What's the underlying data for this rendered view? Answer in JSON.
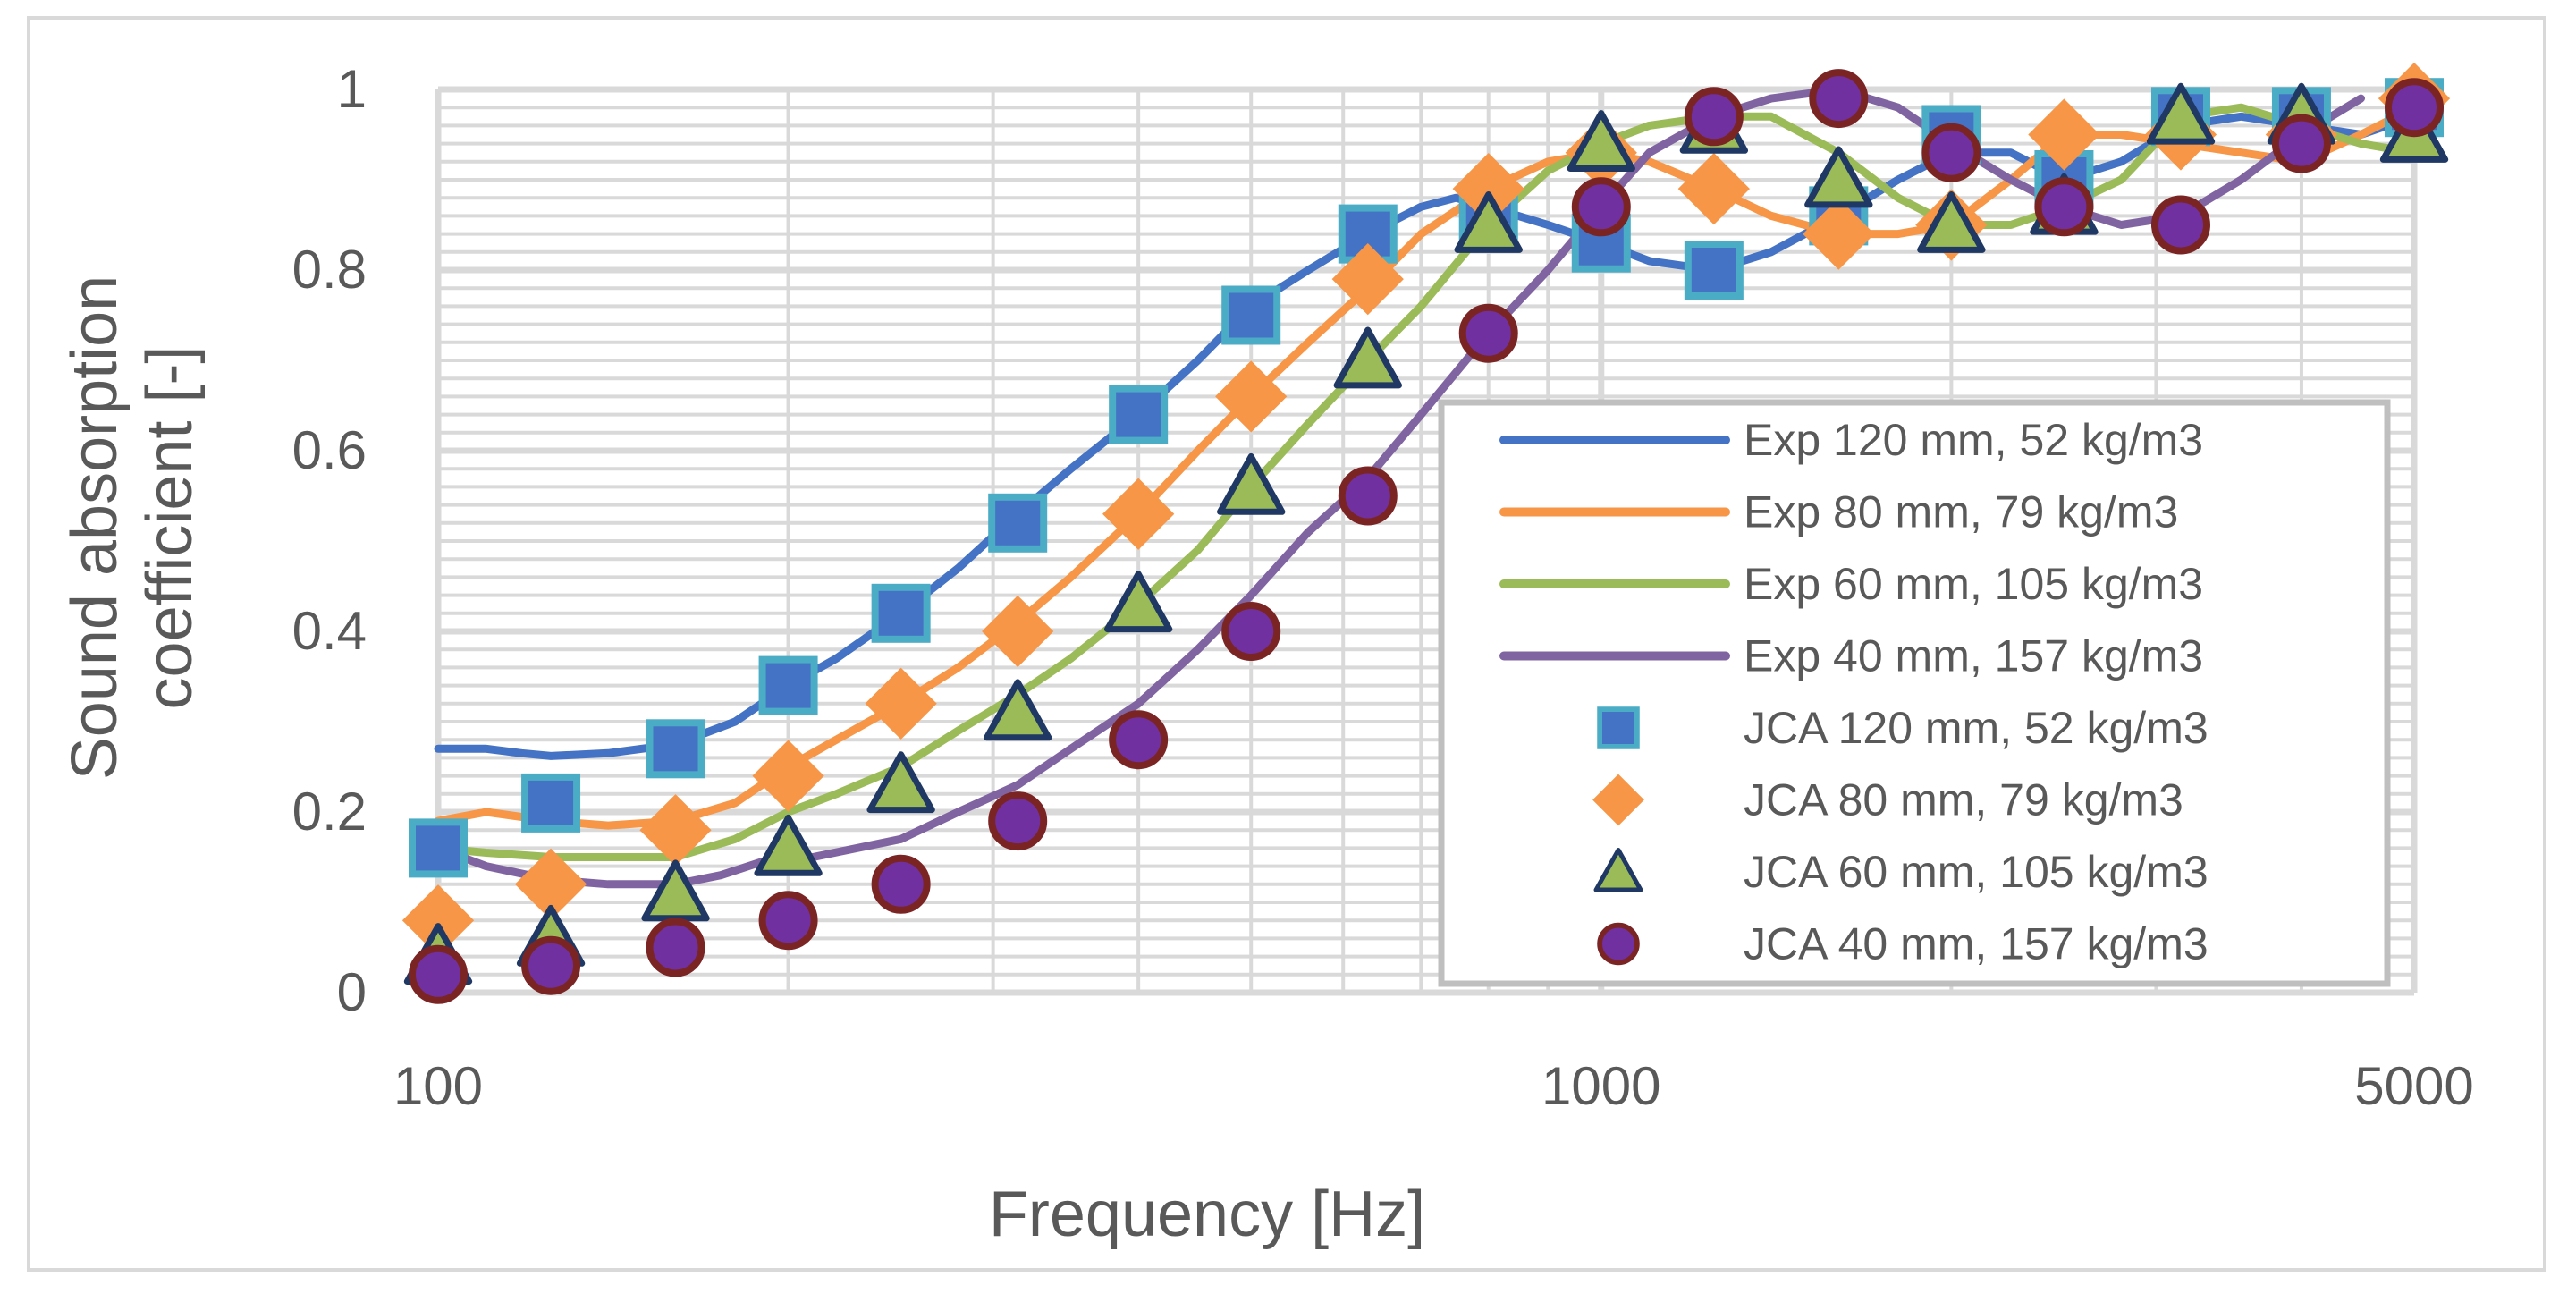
{
  "chart_data": {
    "type": "line",
    "xscale": "log",
    "xlim": [
      100,
      5000
    ],
    "ylim": [
      0,
      1
    ],
    "xlabel": "Frequency [Hz]",
    "ylabel_line1": "Sound absorption",
    "ylabel_line2": "coefficient [-]",
    "xticks": [
      {
        "value": 100,
        "label": "100"
      },
      {
        "value": 1000,
        "label": "1000"
      },
      {
        "value": 5000,
        "label": "5000"
      }
    ],
    "yticks": [
      {
        "value": 0,
        "label": "0"
      },
      {
        "value": 0.2,
        "label": "0.2"
      },
      {
        "value": 0.4,
        "label": "0.4"
      },
      {
        "value": 0.6,
        "label": "0.6"
      },
      {
        "value": 0.8,
        "label": "0.8"
      },
      {
        "value": 1,
        "label": "1"
      }
    ],
    "grid": true,
    "legend_position": "right-lower inside",
    "colors": {
      "blue": "#4472c4",
      "orange": "#f79646",
      "green": "#9bbb59",
      "purple": "#8064a2",
      "teal_edge": "#4bacc6",
      "dark_blue_edge": "#1f3864",
      "dark_red_edge": "#7b2424",
      "grid": "#d9d9d9"
    },
    "lines": [
      {
        "name": "Exp 120 mm, 52 kg/m3",
        "color": "#4472c4",
        "x": [
          100,
          110,
          118,
          125,
          140,
          160,
          180,
          200,
          220,
          250,
          280,
          315,
          350,
          400,
          450,
          500,
          560,
          630,
          700,
          750,
          800,
          900,
          1000,
          1100,
          1250,
          1400,
          1600,
          1800,
          2000,
          2250,
          2500,
          2800,
          3150,
          3550,
          4000,
          4500,
          5000
        ],
        "y": [
          0.27,
          0.27,
          0.265,
          0.262,
          0.265,
          0.275,
          0.3,
          0.34,
          0.37,
          0.42,
          0.47,
          0.53,
          0.58,
          0.64,
          0.7,
          0.76,
          0.8,
          0.84,
          0.87,
          0.88,
          0.87,
          0.85,
          0.83,
          0.81,
          0.8,
          0.82,
          0.86,
          0.9,
          0.93,
          0.93,
          0.9,
          0.92,
          0.96,
          0.97,
          0.96,
          0.95,
          0.97
        ]
      },
      {
        "name": "Exp 80 mm, 79 kg/m3",
        "color": "#f79646",
        "x": [
          100,
          110,
          125,
          140,
          160,
          180,
          200,
          220,
          250,
          280,
          315,
          350,
          400,
          450,
          500,
          560,
          630,
          700,
          800,
          900,
          1000,
          1100,
          1250,
          1400,
          1600,
          1800,
          2000,
          2250,
          2500,
          2800,
          3150,
          3550,
          4000,
          4500,
          5000
        ],
        "y": [
          0.19,
          0.2,
          0.19,
          0.185,
          0.19,
          0.21,
          0.25,
          0.28,
          0.32,
          0.36,
          0.41,
          0.46,
          0.53,
          0.6,
          0.66,
          0.72,
          0.78,
          0.84,
          0.89,
          0.92,
          0.93,
          0.92,
          0.89,
          0.86,
          0.84,
          0.84,
          0.85,
          0.9,
          0.95,
          0.95,
          0.94,
          0.93,
          0.92,
          0.95,
          0.98
        ]
      },
      {
        "name": "Exp 60 mm, 105 kg/m3",
        "color": "#9bbb59",
        "x": [
          100,
          110,
          125,
          140,
          160,
          180,
          200,
          220,
          250,
          280,
          315,
          350,
          400,
          450,
          500,
          560,
          630,
          700,
          800,
          900,
          1000,
          1100,
          1250,
          1400,
          1600,
          1800,
          2000,
          2250,
          2500,
          2800,
          3150,
          3550,
          4000,
          4500,
          5000
        ],
        "y": [
          0.16,
          0.155,
          0.15,
          0.15,
          0.15,
          0.17,
          0.2,
          0.22,
          0.25,
          0.29,
          0.33,
          0.37,
          0.43,
          0.49,
          0.56,
          0.63,
          0.7,
          0.76,
          0.85,
          0.91,
          0.94,
          0.96,
          0.97,
          0.97,
          0.93,
          0.88,
          0.85,
          0.85,
          0.87,
          0.9,
          0.97,
          0.98,
          0.96,
          0.94,
          0.93
        ]
      },
      {
        "name": "Exp 40 mm, 157 kg/m3",
        "color": "#8064a2",
        "x": [
          100,
          110,
          125,
          140,
          160,
          175,
          190,
          210,
          250,
          280,
          315,
          350,
          400,
          450,
          500,
          560,
          630,
          700,
          800,
          900,
          1000,
          1100,
          1250,
          1400,
          1600,
          1800,
          2000,
          2250,
          2500,
          2800,
          3150,
          3550,
          4000,
          4500
        ],
        "y": [
          0.16,
          0.14,
          0.125,
          0.12,
          0.12,
          0.13,
          0.145,
          0.15,
          0.17,
          0.2,
          0.23,
          0.27,
          0.32,
          0.38,
          0.44,
          0.51,
          0.57,
          0.64,
          0.73,
          0.8,
          0.87,
          0.93,
          0.97,
          0.99,
          1.0,
          0.98,
          0.94,
          0.9,
          0.87,
          0.85,
          0.86,
          0.9,
          0.95,
          0.99
        ]
      }
    ],
    "markers": [
      {
        "name": "JCA 120 mm, 52 kg/m3",
        "shape": "square",
        "fill": "#4472c4",
        "edge": "#4bacc6",
        "x": [
          100,
          125,
          160,
          200,
          250,
          315,
          400,
          500,
          630,
          800,
          1000,
          1250,
          1600,
          2000,
          2500,
          3150,
          4000,
          5000
        ],
        "y": [
          0.16,
          0.21,
          0.27,
          0.34,
          0.42,
          0.52,
          0.64,
          0.75,
          0.84,
          0.86,
          0.83,
          0.8,
          0.86,
          0.95,
          0.9,
          0.97,
          0.97,
          0.98
        ]
      },
      {
        "name": "JCA 80 mm, 79 kg/m3",
        "shape": "diamond",
        "fill": "#f79646",
        "edge": "#f79646",
        "x": [
          100,
          125,
          160,
          200,
          250,
          315,
          400,
          500,
          630,
          800,
          1000,
          1250,
          1600,
          2000,
          2500,
          3150,
          4000,
          5000
        ],
        "y": [
          0.08,
          0.12,
          0.18,
          0.24,
          0.32,
          0.4,
          0.53,
          0.66,
          0.79,
          0.89,
          0.93,
          0.89,
          0.84,
          0.85,
          0.95,
          0.95,
          0.95,
          0.99
        ]
      },
      {
        "name": "JCA 60 mm, 105 kg/m3",
        "shape": "triangle",
        "fill": "#9bbb59",
        "edge": "#1f3864",
        "x": [
          100,
          125,
          160,
          200,
          250,
          315,
          400,
          500,
          630,
          800,
          1000,
          1250,
          1600,
          2000,
          2500,
          3150,
          4000,
          5000
        ],
        "y": [
          0.04,
          0.06,
          0.11,
          0.16,
          0.23,
          0.31,
          0.43,
          0.56,
          0.7,
          0.85,
          0.94,
          0.96,
          0.9,
          0.85,
          0.87,
          0.97,
          0.97,
          0.95
        ]
      },
      {
        "name": "JCA 40 mm, 157 kg/m3",
        "shape": "circle",
        "fill": "#7030a0",
        "edge": "#7b2424",
        "x": [
          100,
          125,
          160,
          200,
          250,
          315,
          400,
          500,
          630,
          800,
          1000,
          1250,
          1600,
          2000,
          2500,
          3150,
          4000,
          5000
        ],
        "y": [
          0.02,
          0.03,
          0.05,
          0.08,
          0.12,
          0.19,
          0.28,
          0.4,
          0.55,
          0.73,
          0.87,
          0.97,
          0.99,
          0.93,
          0.87,
          0.85,
          0.94,
          0.98
        ]
      }
    ]
  }
}
